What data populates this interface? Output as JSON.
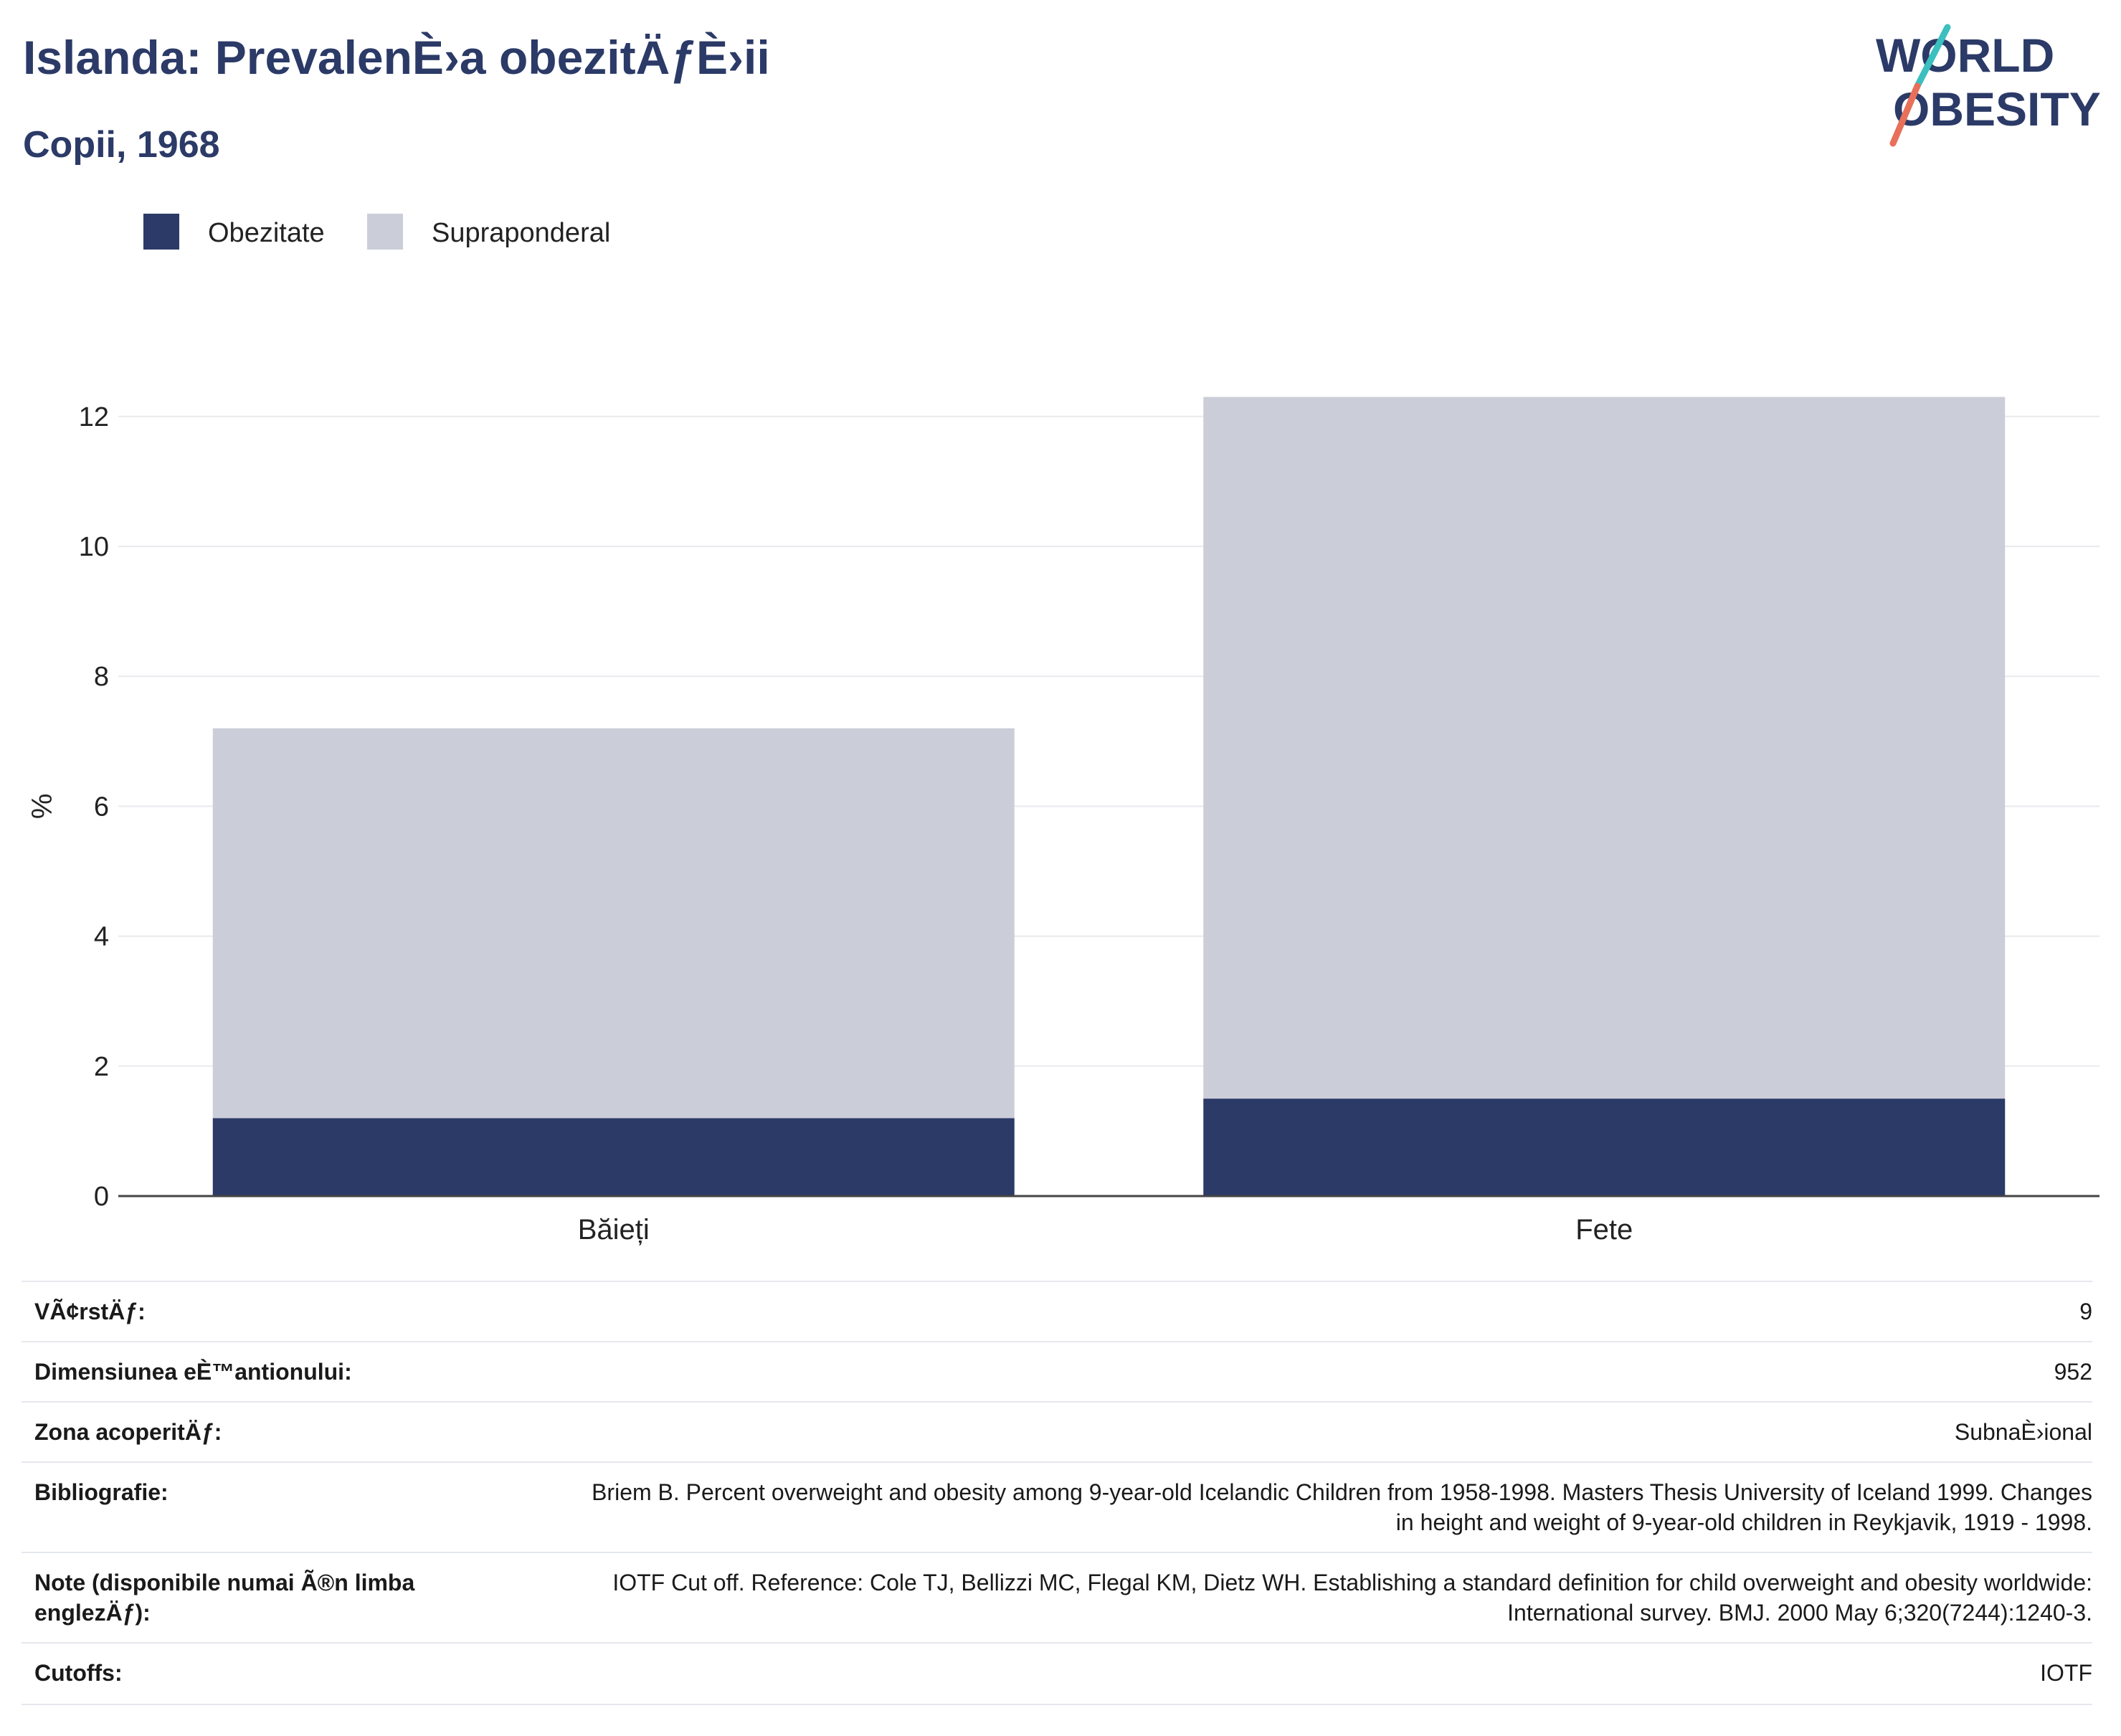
{
  "header": {
    "title": "Islanda: PrevalenÈ›a obezitÄƒÈ›ii",
    "subtitle": "Copii, 1968"
  },
  "logo": {
    "line1": "WORLD",
    "line2": "OBESITY",
    "colors": {
      "navy": "#2b3a67",
      "teal": "#3bbfbf",
      "coral": "#e8705a"
    }
  },
  "legend": [
    {
      "label": "Obezitate",
      "color": "#2b3a67"
    },
    {
      "label": "Supraponderal",
      "color": "#cbcdd8"
    }
  ],
  "chart_data": {
    "type": "bar",
    "stacked": true,
    "categories": [
      "Băieți",
      "Fete"
    ],
    "series": [
      {
        "name": "Obezitate",
        "color": "#2b3a67",
        "values": [
          1.2,
          1.5
        ]
      },
      {
        "name": "Supraponderal",
        "color": "#cbcdd8",
        "values": [
          6.0,
          10.8
        ]
      }
    ],
    "ylabel": "%",
    "ylim": [
      0,
      12.9
    ],
    "yticks": [
      0,
      2,
      4,
      6,
      8,
      10,
      12
    ],
    "grid": true,
    "legend_position": "top-left"
  },
  "info_table": [
    {
      "key": "VÃ¢rstÄƒ:",
      "value": "9"
    },
    {
      "key": "Dimensiunea eÈ™antionului:",
      "value": "952"
    },
    {
      "key": "Zona acoperitÄƒ:",
      "value": "SubnaÈ›ional"
    },
    {
      "key": "Bibliografie:",
      "value": "Briem B. Percent overweight and obesity among 9-year-old Icelandic Children from 1958-1998. Masters Thesis University of Iceland 1999. Changes in height and weight of 9-year-old children in Reykjavik, 1919 - 1998."
    },
    {
      "key": "Note (disponibile numai Ã®n limba englezÄƒ):",
      "value": "IOTF Cut off. Reference: Cole TJ, Bellizzi MC, Flegal KM, Dietz WH. Establishing a standard definition for child overweight and obesity worldwide: International survey. BMJ. 2000 May 6;320(7244):1240-3."
    },
    {
      "key": "Cutoffs:",
      "value": "IOTF"
    }
  ]
}
